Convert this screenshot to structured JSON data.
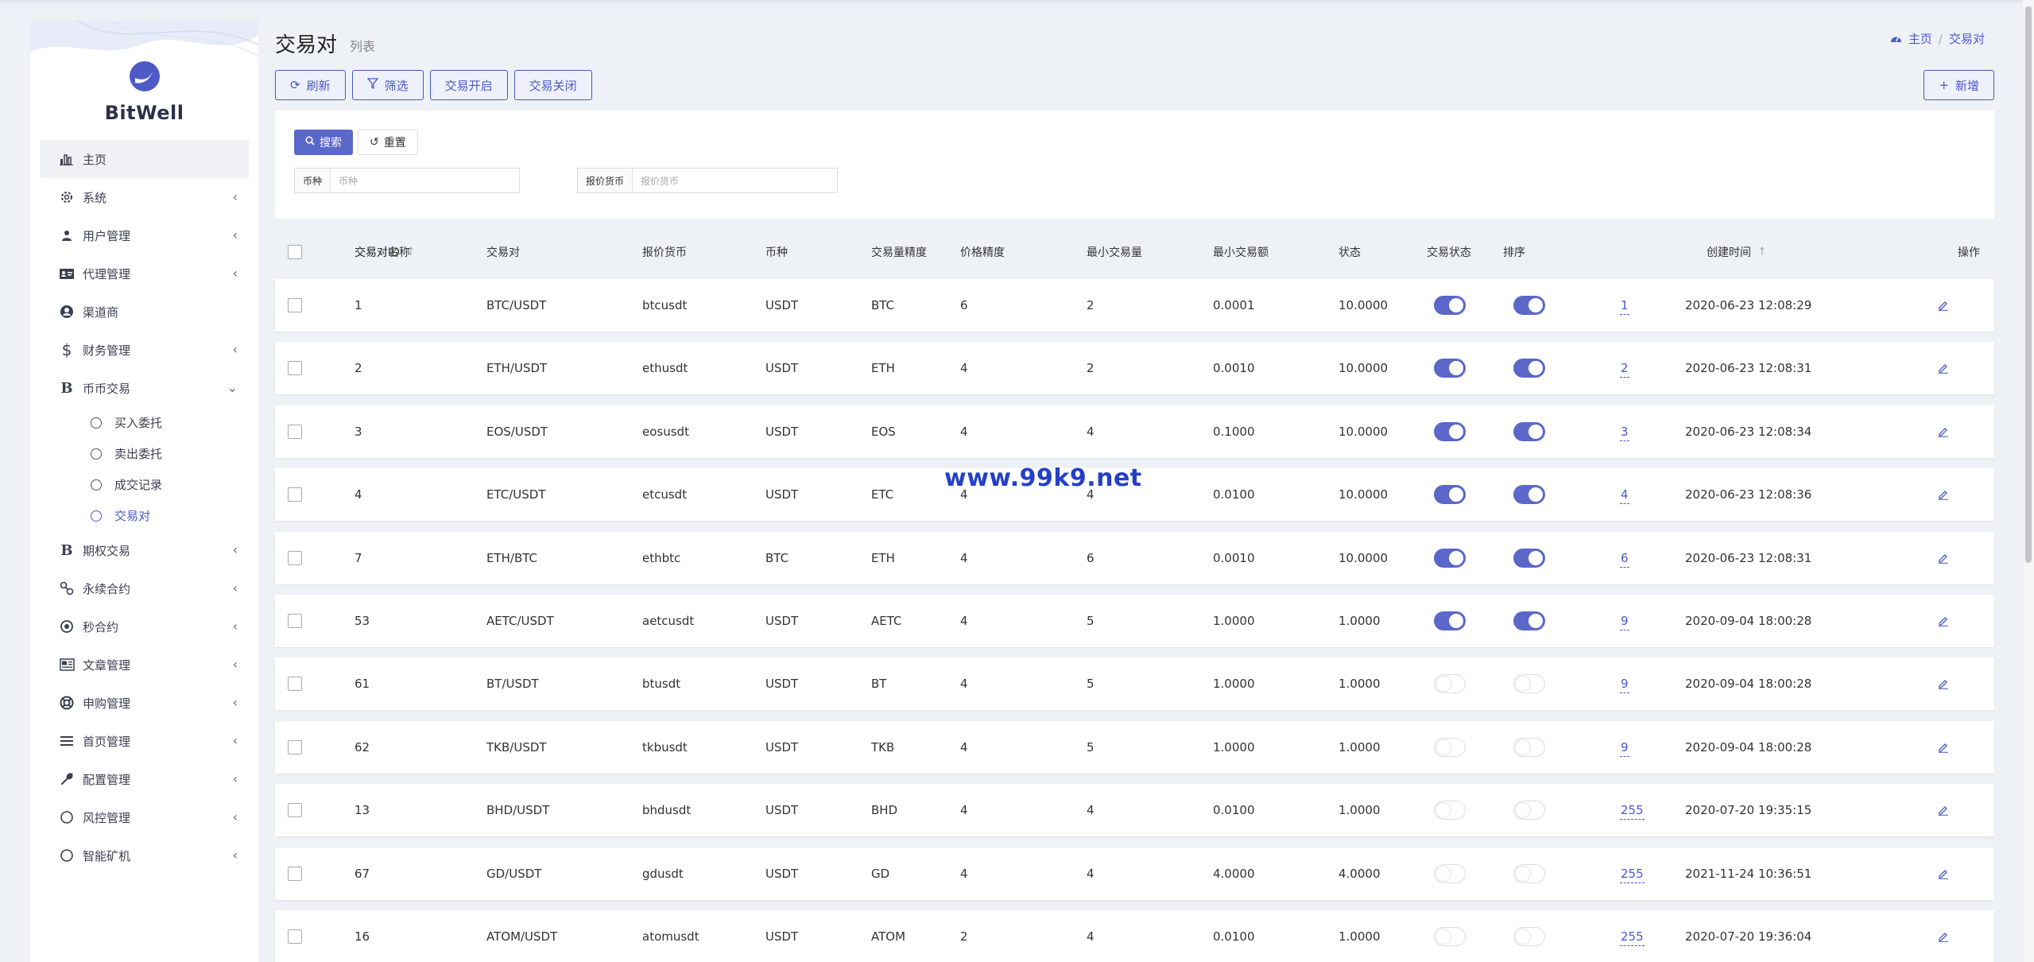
{
  "brand": {
    "name": "BitWell"
  },
  "sidebar": {
    "items": [
      {
        "label": "主页",
        "icon": "dashboard-icon",
        "active": true
      },
      {
        "label": "系统",
        "icon": "gear-icon",
        "arrow": true
      },
      {
        "label": "用户管理",
        "icon": "user-icon",
        "arrow": true
      },
      {
        "label": "代理管理",
        "icon": "id-card-icon",
        "arrow": true
      },
      {
        "label": "渠道商",
        "icon": "user-circle-icon"
      },
      {
        "label": "财务管理",
        "icon": "dollar-icon",
        "arrow": true
      },
      {
        "label": "币币交易",
        "icon": "bitcoin-icon",
        "arrow": true,
        "expanded": true
      }
    ],
    "sub_items": [
      {
        "label": "买入委托"
      },
      {
        "label": "卖出委托"
      },
      {
        "label": "成交记录"
      },
      {
        "label": "交易对",
        "active": true
      }
    ],
    "items_after": [
      {
        "label": "期权交易",
        "icon": "bitcoin-icon"
      },
      {
        "label": "永续合约",
        "icon": "link-icon"
      },
      {
        "label": "秒合约",
        "icon": "dot-circle-icon"
      },
      {
        "label": "文章管理",
        "icon": "newspaper-icon"
      },
      {
        "label": "申购管理",
        "icon": "lifebuoy-icon"
      },
      {
        "label": "首页管理",
        "icon": "list-icon"
      },
      {
        "label": "配置管理",
        "icon": "wrench-icon"
      },
      {
        "label": "风控管理",
        "icon": "circle-icon"
      },
      {
        "label": "智能矿机",
        "icon": "circle-icon"
      }
    ]
  },
  "header": {
    "title": "交易对",
    "subtitle": "列表"
  },
  "breadcrumb": {
    "home": "主页",
    "current": "交易对"
  },
  "toolbar": {
    "refresh": "刷新",
    "filter": "筛选",
    "open": "交易开启",
    "close": "交易关闭",
    "add": "新增"
  },
  "search": {
    "search_btn": "搜索",
    "reset_btn": "重置",
    "coin_label": "币种",
    "coin_placeholder": "币种",
    "quote_label": "报价货币",
    "quote_placeholder": "报价货币"
  },
  "table": {
    "columns": [
      "交易对ID",
      "交易对名称",
      "交易对",
      "报价货币",
      "币种",
      "交易量精度",
      "价格精度",
      "最小交易量",
      "最小交易额",
      "状态",
      "交易状态",
      "排序",
      "创建时间",
      "操作"
    ],
    "rows": [
      {
        "id": "1",
        "name": "BTC/USDT",
        "pair": "btcusdt",
        "quote": "USDT",
        "coin": "BTC",
        "vol_prec": "6",
        "price_prec": "2",
        "min_vol": "0.0001",
        "min_amt": "10.0000",
        "status": true,
        "trade_status": true,
        "sort": "1",
        "created": "2020-06-23 12:08:29"
      },
      {
        "id": "2",
        "name": "ETH/USDT",
        "pair": "ethusdt",
        "quote": "USDT",
        "coin": "ETH",
        "vol_prec": "4",
        "price_prec": "2",
        "min_vol": "0.0010",
        "min_amt": "10.0000",
        "status": true,
        "trade_status": true,
        "sort": "2",
        "created": "2020-06-23 12:08:31"
      },
      {
        "id": "3",
        "name": "EOS/USDT",
        "pair": "eosusdt",
        "quote": "USDT",
        "coin": "EOS",
        "vol_prec": "4",
        "price_prec": "4",
        "min_vol": "0.1000",
        "min_amt": "10.0000",
        "status": true,
        "trade_status": true,
        "sort": "3",
        "created": "2020-06-23 12:08:34"
      },
      {
        "id": "4",
        "name": "ETC/USDT",
        "pair": "etcusdt",
        "quote": "USDT",
        "coin": "ETC",
        "vol_prec": "4",
        "price_prec": "4",
        "min_vol": "0.0100",
        "min_amt": "10.0000",
        "status": true,
        "trade_status": true,
        "sort": "4",
        "created": "2020-06-23 12:08:36"
      },
      {
        "id": "7",
        "name": "ETH/BTC",
        "pair": "ethbtc",
        "quote": "BTC",
        "coin": "ETH",
        "vol_prec": "4",
        "price_prec": "6",
        "min_vol": "0.0010",
        "min_amt": "10.0000",
        "status": true,
        "trade_status": true,
        "sort": "6",
        "created": "2020-06-23 12:08:31"
      },
      {
        "id": "53",
        "name": "AETC/USDT",
        "pair": "aetcusdt",
        "quote": "USDT",
        "coin": "AETC",
        "vol_prec": "4",
        "price_prec": "5",
        "min_vol": "1.0000",
        "min_amt": "1.0000",
        "status": true,
        "trade_status": true,
        "sort": "9",
        "created": "2020-09-04 18:00:28"
      },
      {
        "id": "61",
        "name": "BT/USDT",
        "pair": "btusdt",
        "quote": "USDT",
        "coin": "BT",
        "vol_prec": "4",
        "price_prec": "5",
        "min_vol": "1.0000",
        "min_amt": "1.0000",
        "status": false,
        "trade_status": false,
        "sort": "9",
        "created": "2020-09-04 18:00:28"
      },
      {
        "id": "62",
        "name": "TKB/USDT",
        "pair": "tkbusdt",
        "quote": "USDT",
        "coin": "TKB",
        "vol_prec": "4",
        "price_prec": "5",
        "min_vol": "1.0000",
        "min_amt": "1.0000",
        "status": false,
        "trade_status": false,
        "sort": "9",
        "created": "2020-09-04 18:00:28"
      },
      {
        "id": "13",
        "name": "BHD/USDT",
        "pair": "bhdusdt",
        "quote": "USDT",
        "coin": "BHD",
        "vol_prec": "4",
        "price_prec": "4",
        "min_vol": "0.0100",
        "min_amt": "1.0000",
        "status": false,
        "trade_status": false,
        "sort": "255",
        "created": "2020-07-20 19:35:15"
      },
      {
        "id": "67",
        "name": "GD/USDT",
        "pair": "gdusdt",
        "quote": "USDT",
        "coin": "GD",
        "vol_prec": "4",
        "price_prec": "4",
        "min_vol": "4.0000",
        "min_amt": "4.0000",
        "status": false,
        "trade_status": false,
        "sort": "255",
        "created": "2021-11-24 10:36:51"
      },
      {
        "id": "16",
        "name": "ATOM/USDT",
        "pair": "atomusdt",
        "quote": "USDT",
        "coin": "ATOM",
        "vol_prec": "2",
        "price_prec": "4",
        "min_vol": "0.0100",
        "min_amt": "1.0000",
        "status": false,
        "trade_status": false,
        "sort": "255",
        "created": "2020-07-20 19:36:04"
      }
    ]
  },
  "watermark": "www.99k9.net",
  "colors": {
    "accent": "#4b58c8",
    "toggle_on": "#5b67c9",
    "background": "#eef1f6"
  }
}
